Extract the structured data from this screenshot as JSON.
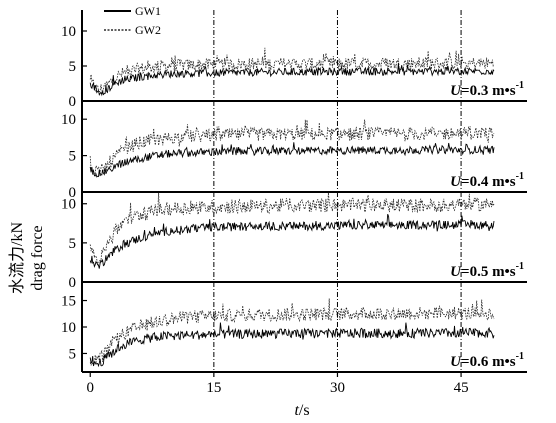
{
  "chart_data": {
    "type": "line",
    "xlabel": "t/s",
    "ylabel": [
      "水流力/kN",
      "drag force"
    ],
    "x_ticks": [
      0,
      15,
      30,
      45
    ],
    "xlim": [
      -1,
      53
    ],
    "vlines": [
      15,
      30,
      45
    ],
    "legend": {
      "position": "top-left",
      "entries": [
        "GW1",
        "GW2"
      ]
    },
    "panels": [
      {
        "label": "U=0.3 m•s-1",
        "ylim": [
          0,
          13
        ],
        "yticks": [
          0,
          5,
          10
        ],
        "series": [
          {
            "name": "GW1",
            "x": [
              0,
              1,
              2,
              3,
              4,
              6,
              8,
              10,
              15,
              20,
              30,
              40,
              49
            ],
            "y": [
              2.6,
              1.3,
              1.6,
              2.5,
              3.0,
              3.4,
              3.7,
              3.9,
              4.0,
              4.1,
              4.2,
              4.2,
              4.3
            ]
          },
          {
            "name": "GW2",
            "x": [
              0,
              1,
              2,
              3,
              4,
              6,
              8,
              10,
              15,
              20,
              30,
              40,
              49
            ],
            "y": [
              2.8,
              1.5,
              2.2,
              3.3,
              4.0,
              4.6,
              4.9,
              5.1,
              5.2,
              5.3,
              5.3,
              5.4,
              5.4
            ]
          }
        ]
      },
      {
        "label": "U=0.4 m•s-1",
        "ylim": [
          0,
          12.5
        ],
        "yticks": [
          0,
          5,
          10
        ],
        "series": [
          {
            "name": "GW1",
            "x": [
              0,
              1,
              2,
              3,
              4,
              6,
              8,
              10,
              15,
              20,
              30,
              40,
              49
            ],
            "y": [
              3.0,
              2.5,
              2.9,
              3.5,
              4.0,
              4.6,
              5.0,
              5.3,
              5.5,
              5.6,
              5.7,
              5.8,
              5.8
            ]
          },
          {
            "name": "GW2",
            "x": [
              0,
              1,
              2,
              3,
              4,
              6,
              8,
              10,
              15,
              20,
              30,
              40,
              49
            ],
            "y": [
              3.2,
              2.6,
              3.6,
              4.8,
              5.8,
              6.8,
              7.2,
              7.5,
              7.8,
              7.9,
              8.0,
              8.0,
              8.1
            ]
          }
        ]
      },
      {
        "label": "U=0.5 m•s-1",
        "ylim": [
          0,
          11.5
        ],
        "yticks": [
          0,
          5,
          10
        ],
        "series": [
          {
            "name": "GW1",
            "x": [
              0,
              1,
              2,
              3,
              4,
              6,
              8,
              10,
              15,
              20,
              30,
              40,
              49
            ],
            "y": [
              3.0,
              2.0,
              3.0,
              4.0,
              4.8,
              5.6,
              6.2,
              6.6,
              7.0,
              7.1,
              7.2,
              7.3,
              7.3
            ]
          },
          {
            "name": "GW2",
            "x": [
              0,
              1,
              2,
              3,
              4,
              6,
              8,
              10,
              15,
              20,
              30,
              40,
              49
            ],
            "y": [
              4.0,
              3.0,
              4.8,
              6.5,
              7.6,
              8.6,
              9.1,
              9.4,
              9.6,
              9.7,
              9.8,
              9.8,
              9.9
            ]
          }
        ]
      },
      {
        "label": "U=0.6 m•s-1",
        "ylim": [
          1.5,
          18.5
        ],
        "yticks": [
          5,
          10,
          15
        ],
        "series": [
          {
            "name": "GW1",
            "x": [
              0,
              1,
              2,
              3,
              4,
              6,
              8,
              10,
              15,
              20,
              30,
              40,
              49
            ],
            "y": [
              3.5,
              3.0,
              4.3,
              5.6,
              6.6,
              7.6,
              8.1,
              8.4,
              8.6,
              8.7,
              8.8,
              8.8,
              8.9
            ]
          },
          {
            "name": "GW2",
            "x": [
              0,
              1,
              2,
              3,
              4,
              6,
              8,
              10,
              15,
              20,
              30,
              40,
              49
            ],
            "y": [
              4.0,
              3.6,
              5.4,
              7.2,
              8.6,
              10.1,
              11.0,
              11.6,
              12.1,
              12.3,
              12.5,
              12.6,
              12.6
            ]
          }
        ]
      }
    ]
  }
}
